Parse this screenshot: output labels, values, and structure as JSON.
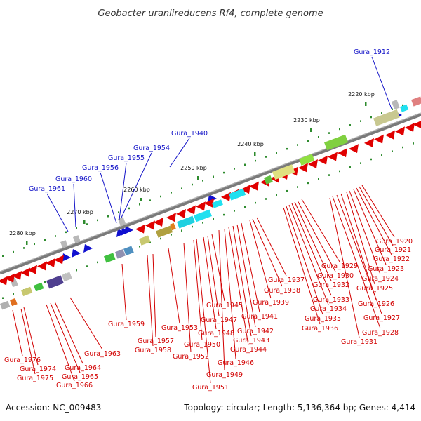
{
  "title": "Geobacter uraniireducens Rf4, complete genome",
  "footer": {
    "accession": "Accession: NC_009483",
    "summary": "Topology: circular; Length: 5,136,364 bp; Genes: 4,414"
  },
  "scale_labels": [
    "2220 kbp",
    "2230 kbp",
    "2240 kbp",
    "2250 kbp",
    "2260 kbp",
    "2270 kbp",
    "2280 kbp"
  ],
  "colors": {
    "forward_label": "#1414c8",
    "reverse_label": "#d20000",
    "backbone": "#7a7a7a",
    "forward_gene": "#1010d0",
    "reverse_gene": "#e00000",
    "tick": "#2e8b2e"
  },
  "forward_genes": [
    {
      "label": "Gura_1912"
    },
    {
      "label": "Gura_1940"
    },
    {
      "label": "Gura_1954"
    },
    {
      "label": "Gura_1955"
    },
    {
      "label": "Gura_1956"
    },
    {
      "label": "Gura_1960"
    },
    {
      "label": "Gura_1961"
    }
  ],
  "reverse_genes": [
    {
      "label": "Gura_1920"
    },
    {
      "label": "Gura_1921"
    },
    {
      "label": "Gura_1922"
    },
    {
      "label": "Gura_1923"
    },
    {
      "label": "Gura_1924"
    },
    {
      "label": "Gura_1925"
    },
    {
      "label": "Gura_1926"
    },
    {
      "label": "Gura_1927"
    },
    {
      "label": "Gura_1928"
    },
    {
      "label": "Gura_1929"
    },
    {
      "label": "Gura_1930"
    },
    {
      "label": "Gura_1931"
    },
    {
      "label": "Gura_1932"
    },
    {
      "label": "Gura_1933"
    },
    {
      "label": "Gura_1934"
    },
    {
      "label": "Gura_1935"
    },
    {
      "label": "Gura_1936"
    },
    {
      "label": "Gura_1937"
    },
    {
      "label": "Gura_1938"
    },
    {
      "label": "Gura_1939"
    },
    {
      "label": "Gura_1941"
    },
    {
      "label": "Gura_1942"
    },
    {
      "label": "Gura_1943"
    },
    {
      "label": "Gura_1944"
    },
    {
      "label": "Gura_1945"
    },
    {
      "label": "Gura_1946"
    },
    {
      "label": "Gura_1947"
    },
    {
      "label": "Gura_1948"
    },
    {
      "label": "Gura_1949"
    },
    {
      "label": "Gura_1950"
    },
    {
      "label": "Gura_1951"
    },
    {
      "label": "Gura_1952"
    },
    {
      "label": "Gura_1953"
    },
    {
      "label": "Gura_1957"
    },
    {
      "label": "Gura_1958"
    },
    {
      "label": "Gura_1959"
    },
    {
      "label": "Gura_1963"
    },
    {
      "label": "Gura_1964"
    },
    {
      "label": "Gura_1965"
    },
    {
      "label": "Gura_1966"
    },
    {
      "label": "Gura_1974"
    },
    {
      "label": "Gura_1975"
    },
    {
      "label": "Gura_1976"
    }
  ]
}
